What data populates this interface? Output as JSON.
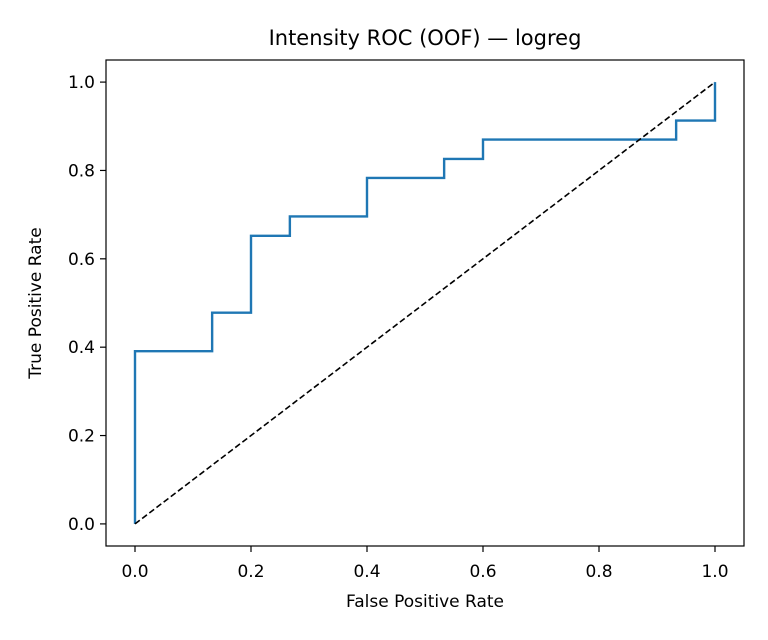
{
  "chart_data": {
    "type": "line",
    "title": "Intensity ROC (OOF) — logreg",
    "xlabel": "False Positive Rate",
    "ylabel": "True Positive Rate",
    "xlim": [
      -0.05,
      1.05
    ],
    "ylim": [
      -0.05,
      1.05
    ],
    "xticks": [
      "0.0",
      "0.2",
      "0.4",
      "0.6",
      "0.8",
      "1.0"
    ],
    "yticks": [
      "0.0",
      "0.2",
      "0.4",
      "0.6",
      "0.8",
      "1.0"
    ],
    "grid": false,
    "legend": "none",
    "series": [
      {
        "kind": "step",
        "color": "#1f77b4",
        "x": [
          0.0,
          0.0,
          0.133,
          0.133,
          0.2,
          0.2,
          0.267,
          0.267,
          0.4,
          0.4,
          0.533,
          0.533,
          0.6,
          0.6,
          0.933,
          0.933,
          1.0,
          1.0
        ],
        "y": [
          0.0,
          0.391,
          0.391,
          0.478,
          0.478,
          0.652,
          0.652,
          0.696,
          0.696,
          0.783,
          0.783,
          0.826,
          0.826,
          0.87,
          0.87,
          0.913,
          0.913,
          1.0
        ]
      },
      {
        "kind": "reference",
        "color": "#000000",
        "dashed": true,
        "x": [
          0.0,
          1.0
        ],
        "y": [
          0.0,
          1.0
        ]
      }
    ]
  }
}
